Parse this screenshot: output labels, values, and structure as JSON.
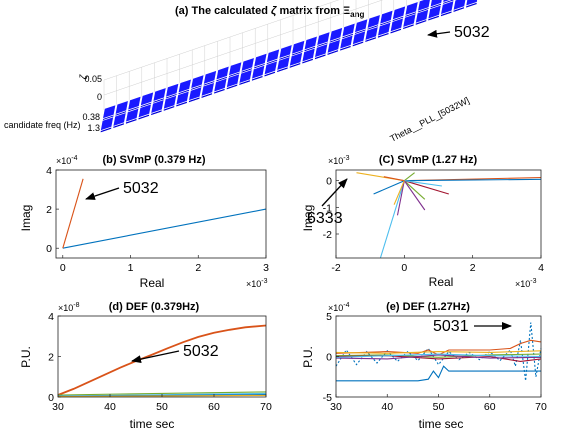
{
  "chart_data": [
    {
      "type": "bar3d",
      "title_prefix": "(a) The calculated ",
      "title_zeta": "ζ",
      "title_mid": " matrix from ",
      "title_xi": "Ξ",
      "title_sub": "ang",
      "zlabel": "ζ",
      "zticks": [
        "0.05",
        "0"
      ],
      "ylabel": "candidate freq (Hz)",
      "yticks": [
        "0.38",
        "1.3"
      ],
      "xlabel": "Theta__PLL_[5032W]",
      "annotation": "5032",
      "rows": [
        "0.38",
        "1.3"
      ],
      "n_generators": 30,
      "peak_row": 0,
      "peak_column": 29,
      "peak_value": 0.05,
      "color": "#1a1aff"
    },
    {
      "type": "line",
      "title": "(b) SVmP (0.379 Hz)",
      "xlabel": "Real",
      "ylabel": "Imag",
      "x_exponent": "×10",
      "x_exp_power": "-3",
      "y_exponent": "×10",
      "y_exp_power": "-4",
      "xlim": [
        -0.0001,
        0.003
      ],
      "ylim": [
        -5e-05,
        0.0004
      ],
      "xticks": [
        "0",
        "1",
        "2",
        "3"
      ],
      "yticks": [
        "0",
        "2",
        "4"
      ],
      "annotation": "5032",
      "series": [
        {
          "color": "#0072bd",
          "x": [
            0,
            0.003
          ],
          "y": [
            0,
            0.0002
          ]
        },
        {
          "color": "#d95319",
          "x": [
            0,
            0.0003
          ],
          "y": [
            0,
            0.000355
          ]
        }
      ]
    },
    {
      "type": "line",
      "title": "(C) SVmP (1.27 Hz)",
      "xlabel": "Real",
      "ylabel": "Imag",
      "x_exponent": "×10",
      "x_exp_power": "-3",
      "y_exponent": "×10",
      "y_exp_power": "-3",
      "xlim": [
        -0.002,
        0.004
      ],
      "ylim": [
        -0.0029,
        0.0004
      ],
      "xticks": [
        "-2",
        "0",
        "2",
        "4"
      ],
      "yticks": [
        "0",
        "-1",
        "-2"
      ],
      "annotation": "6333",
      "series": [
        {
          "color": "#d95319",
          "x": [
            0,
            0.004
          ],
          "y": [
            0,
            0.00012
          ]
        },
        {
          "color": "#0072bd",
          "x": [
            0,
            0.004
          ],
          "y": [
            0,
            5e-05
          ]
        },
        {
          "color": "#4dbeee",
          "x": [
            0,
            -0.0007
          ],
          "y": [
            0,
            -0.0029
          ]
        },
        {
          "color": "#7e2f8e",
          "x": [
            0,
            -0.0002
          ],
          "y": [
            0,
            -0.0013
          ]
        },
        {
          "color": "#edb120",
          "x": [
            0,
            -0.0014
          ],
          "y": [
            0,
            0.0003
          ]
        },
        {
          "color": "#77ac30",
          "x": [
            0,
            0.0006
          ],
          "y": [
            0,
            -0.0007
          ]
        },
        {
          "color": "#a2142f",
          "x": [
            0,
            0.0013
          ],
          "y": [
            0,
            -0.0005
          ]
        },
        {
          "color": "#0072bd",
          "x": [
            0,
            -0.0009
          ],
          "y": [
            0,
            -0.0005
          ]
        },
        {
          "color": "#77ac30",
          "x": [
            0,
            0.0003
          ],
          "y": [
            0,
            0.0003
          ]
        },
        {
          "color": "#d95319",
          "x": [
            0,
            -0.0006
          ],
          "y": [
            0,
            0.00015
          ]
        },
        {
          "color": "#4dbeee",
          "x": [
            0,
            0.0011
          ],
          "y": [
            0,
            -0.0002
          ]
        },
        {
          "color": "#7e2f8e",
          "x": [
            0,
            0.0006
          ],
          "y": [
            0,
            -0.0011
          ]
        },
        {
          "color": "#edb120",
          "x": [
            0,
            -0.0003
          ],
          "y": [
            0,
            -0.0009
          ]
        }
      ]
    },
    {
      "type": "line",
      "title": "(d) DEF (0.379Hz)",
      "xlabel": "time sec",
      "ylabel": "P.U.",
      "y_exponent": "×10",
      "y_exp_power": "-8",
      "xlim": [
        30,
        70
      ],
      "ylim": [
        0,
        4e-08
      ],
      "xticks": [
        "30",
        "40",
        "50",
        "60",
        "70"
      ],
      "yticks": [
        "0",
        "2",
        "4"
      ],
      "annotation": "5032",
      "series": [
        {
          "color": "#d95319",
          "x": [
            30,
            33,
            36,
            39,
            42,
            45,
            48,
            51,
            54,
            57,
            60,
            63,
            66,
            70
          ],
          "y": [
            1e-09,
            4e-09,
            7.5e-09,
            1.1e-08,
            1.45e-08,
            1.78e-08,
            2.08e-08,
            2.4e-08,
            2.7e-08,
            2.97e-08,
            3.17e-08,
            3.32e-08,
            3.44e-08,
            3.53e-08
          ]
        },
        {
          "color": "#77ac30",
          "x": [
            30,
            70
          ],
          "y": [
            1e-09,
            2.5e-09
          ]
        },
        {
          "color": "#4dbeee",
          "x": [
            30,
            70
          ],
          "y": [
            5e-10,
            1.8e-09
          ]
        },
        {
          "color": "#0072bd",
          "x": [
            30,
            70
          ],
          "y": [
            3e-10,
            1.2e-09
          ]
        },
        {
          "color": "#edb120",
          "x": [
            30,
            70
          ],
          "y": [
            2e-10,
            8e-10
          ]
        }
      ]
    },
    {
      "type": "line",
      "title": "(e) DEF (1.27Hz)",
      "xlabel": "time sec",
      "ylabel": "P.U.",
      "y_exponent": "×10",
      "y_exp_power": "-4",
      "xlim": [
        30,
        70
      ],
      "ylim": [
        -0.0005,
        0.0005
      ],
      "xticks": [
        "30",
        "40",
        "50",
        "60",
        "70"
      ],
      "yticks": [
        "5",
        "0",
        "-5"
      ],
      "annotation": "5031",
      "series": [
        {
          "color": "#0072bd",
          "dashed": true,
          "x": [
            30,
            32,
            34,
            36,
            38,
            40,
            42,
            44,
            46,
            48,
            50,
            52,
            54,
            56,
            58,
            60,
            62,
            64,
            65,
            66,
            67,
            68,
            69,
            70
          ],
          "y": [
            -0.00012,
            8e-05,
            -0.0001,
            6e-05,
            -8e-05,
            7e-05,
            -6e-05,
            6e-05,
            -5e-05,
            0.0001,
            -0.0001,
            6e-05,
            -4e-05,
            5e-05,
            -4e-05,
            6e-05,
            -5e-05,
            8e-05,
            -0.00012,
            0.0002,
            -0.0003,
            0.00042,
            -0.00025,
            0.0001
          ]
        },
        {
          "color": "#0072bd",
          "x": [
            30,
            40,
            46,
            48,
            49,
            50,
            51,
            52,
            60,
            70
          ],
          "y": [
            -0.0003,
            -0.0003,
            -0.0003,
            -0.00028,
            -0.00018,
            -0.00026,
            -0.00012,
            -0.00018,
            -0.00018,
            -0.00018
          ]
        },
        {
          "color": "#d95319",
          "x": [
            30,
            40,
            46,
            48,
            50,
            52,
            60,
            64,
            66,
            68,
            70
          ],
          "y": [
            4e-05,
            6e-05,
            4e-05,
            8e-05,
            2e-05,
            8e-05,
            8e-05,
            0.0001,
            0.00016,
            0.0002,
            0.00018
          ]
        },
        {
          "color": "#77ac30",
          "x": [
            30,
            40,
            50,
            60,
            70
          ],
          "y": [
            1e-05,
            2e-05,
            -1e-05,
            2e-05,
            3e-05
          ]
        },
        {
          "color": "#edb120",
          "x": [
            30,
            40,
            50,
            60,
            70
          ],
          "y": [
            5e-05,
            4e-05,
            6e-05,
            5e-05,
            7e-05
          ]
        },
        {
          "color": "#a2142f",
          "x": [
            30,
            40,
            50,
            60,
            66,
            70
          ],
          "y": [
            0.0,
            1e-05,
            -3e-05,
            0.0,
            -6e-05,
            -3e-05
          ]
        },
        {
          "color": "#7e2f8e",
          "x": [
            30,
            40,
            50,
            60,
            70
          ],
          "y": [
            -2e-05,
            -3e-05,
            2e-05,
            -2e-05,
            -1e-05
          ]
        },
        {
          "color": "#4dbeee",
          "x": [
            30,
            40,
            50,
            60,
            70
          ],
          "y": [
            -1e-05,
            1e-05,
            3e-05,
            1e-05,
            0.0
          ]
        }
      ]
    }
  ]
}
